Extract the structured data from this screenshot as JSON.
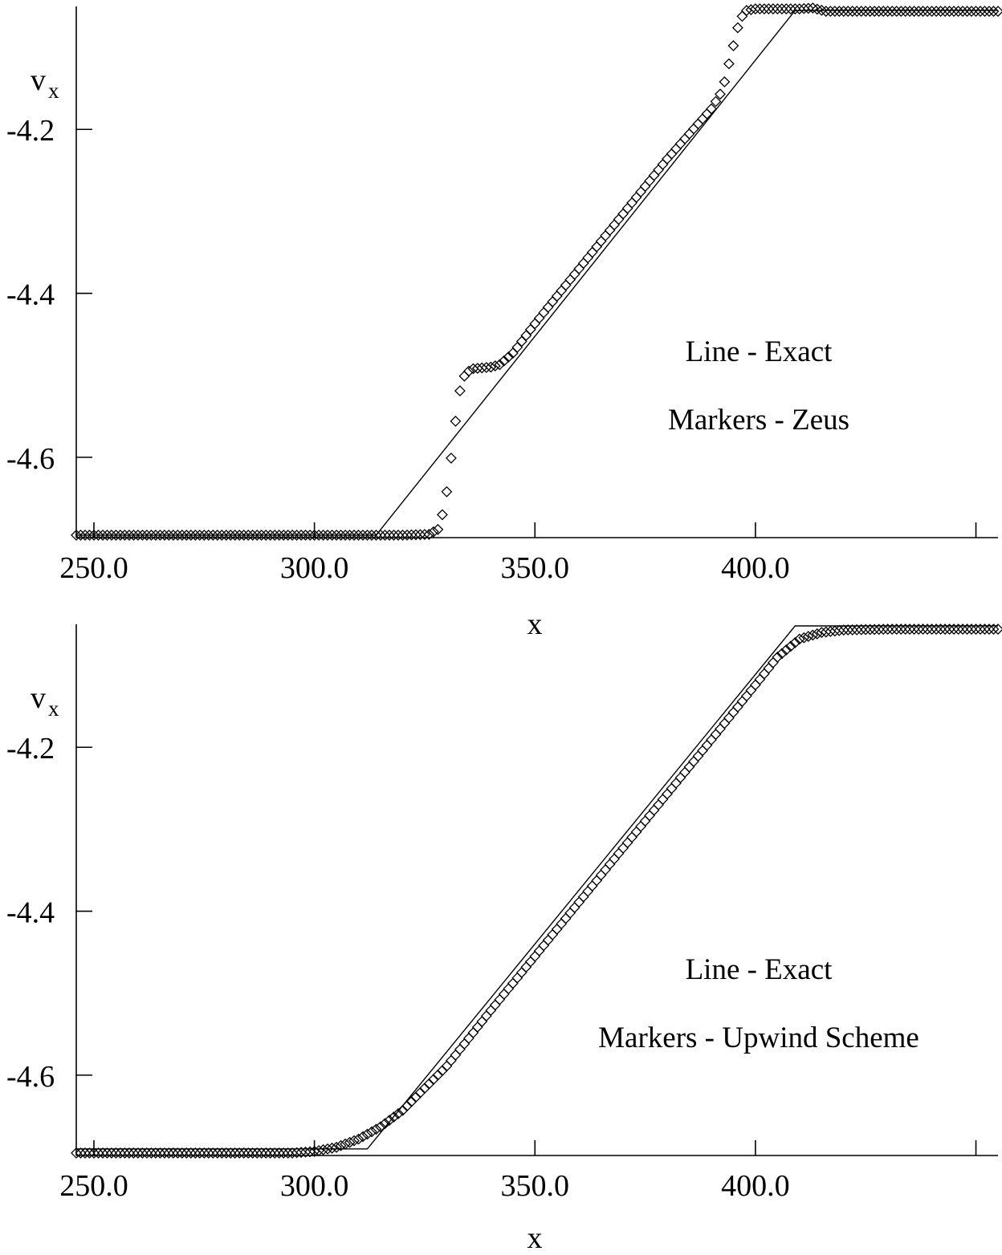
{
  "chart_data": [
    {
      "type": "line",
      "title": "",
      "xlabel": "x",
      "ylabel": "v",
      "ylabel_sub": "x",
      "xlim": [
        246,
        455
      ],
      "ylim": [
        -4.698,
        -4.05
      ],
      "xticks": [
        250,
        300,
        350,
        400,
        450
      ],
      "xtick_labels": [
        "250.0",
        "300.0",
        "350.0",
        "400.0",
        ""
      ],
      "yticks": [
        -4.2,
        -4.4,
        -4.6
      ],
      "ytick_labels": [
        "-4.2",
        "-4.4",
        -4.6
      ],
      "grid": false,
      "annotations": [
        "Line - Exact",
        "Markers - Zeus"
      ],
      "series": [
        {
          "style": "line",
          "x": [
            246,
            314,
            409,
            455
          ],
          "y": [
            -4.695,
            -4.695,
            -4.055,
            -4.055
          ]
        },
        {
          "style": "diamond-markers",
          "x": [
            246,
            320,
            326,
            328,
            329,
            330,
            331,
            332,
            333,
            334,
            335,
            336,
            338,
            340,
            342,
            345,
            350,
            360,
            370,
            380,
            390,
            392,
            393,
            394,
            395,
            396,
            397,
            398,
            400,
            410,
            413,
            416,
            455
          ],
          "y": [
            -4.695,
            -4.695,
            -4.694,
            -4.688,
            -4.67,
            -4.642,
            -4.601,
            -4.556,
            -4.519,
            -4.501,
            -4.495,
            -4.492,
            -4.491,
            -4.49,
            -4.487,
            -4.473,
            -4.437,
            -4.37,
            -4.303,
            -4.236,
            -4.175,
            -4.157,
            -4.142,
            -4.12,
            -4.098,
            -4.076,
            -4.062,
            -4.055,
            -4.053,
            -4.053,
            -4.052,
            -4.056,
            -4.056
          ]
        }
      ]
    },
    {
      "type": "line",
      "title": "",
      "xlabel": "x",
      "ylabel": "v",
      "ylabel_sub": "x",
      "xlim": [
        246,
        455
      ],
      "ylim": [
        -4.698,
        -4.05
      ],
      "xticks": [
        250,
        300,
        350,
        400,
        450
      ],
      "xtick_labels": [
        "250.0",
        "300.0",
        "350.0",
        "400.0",
        ""
      ],
      "yticks": [
        -4.2,
        -4.4,
        -4.6
      ],
      "ytick_labels": [
        "-4.2",
        "-4.4",
        "-4.6"
      ],
      "grid": false,
      "annotations": [
        "Line - Exact",
        "Markers - Upwind Scheme"
      ],
      "series": [
        {
          "style": "line",
          "x": [
            246,
            312,
            409,
            455
          ],
          "y": [
            -4.69,
            -4.69,
            -4.052,
            -4.052
          ]
        },
        {
          "style": "diamond-markers",
          "x": [
            246,
            295,
            300,
            305,
            310,
            315,
            320,
            330,
            340,
            350,
            360,
            370,
            380,
            390,
            400,
            405,
            410,
            415,
            420,
            430,
            455
          ],
          "y": [
            -4.695,
            -4.695,
            -4.693,
            -4.688,
            -4.678,
            -4.663,
            -4.643,
            -4.589,
            -4.521,
            -4.455,
            -4.389,
            -4.323,
            -4.257,
            -4.191,
            -4.124,
            -4.09,
            -4.068,
            -4.06,
            -4.057,
            -4.056,
            -4.056
          ]
        }
      ]
    }
  ]
}
